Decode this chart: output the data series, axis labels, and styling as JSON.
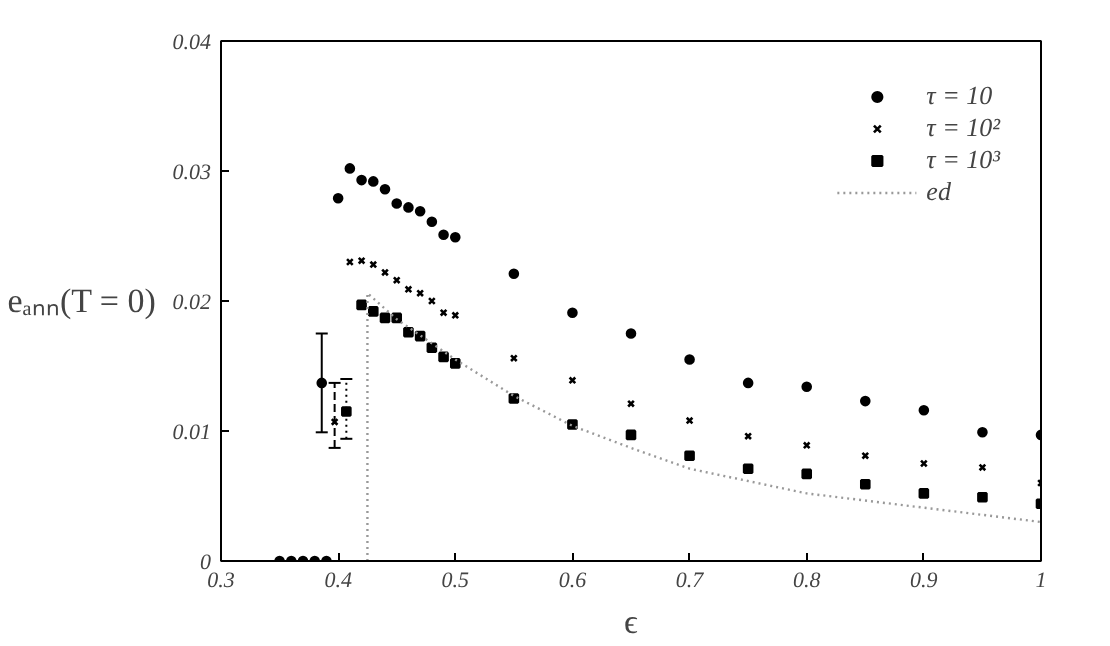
{
  "chart_data": {
    "type": "scatter",
    "xlabel": "ϵ",
    "ylabel": "eₐₙₙ(T = 0)",
    "xlim": [
      0.3,
      1.0
    ],
    "ylim": [
      0,
      0.04
    ],
    "xticks": [
      0.3,
      0.4,
      0.5,
      0.6,
      0.7,
      0.8,
      0.9,
      1
    ],
    "yticks": [
      0,
      0.01,
      0.02,
      0.03,
      0.04
    ],
    "grid": false,
    "legend": "top right",
    "series": [
      {
        "name": "τ = 10",
        "color": "#000000",
        "marker": "circle",
        "line_style": "solid",
        "x": [
          0.35,
          0.36,
          0.37,
          0.38,
          0.39,
          0.386,
          0.4,
          0.41,
          0.42,
          0.43,
          0.44,
          0.45,
          0.46,
          0.47,
          0.48,
          0.49,
          0.5,
          0.55,
          0.6,
          0.65,
          0.7,
          0.75,
          0.8,
          0.85,
          0.9,
          0.95,
          1.0
        ],
        "values": [
          0,
          0,
          0,
          0,
          0,
          0.0137,
          0.0279,
          0.0302,
          0.0293,
          0.0292,
          0.0286,
          0.0275,
          0.0272,
          0.0269,
          0.0261,
          0.0251,
          0.0249,
          0.0221,
          0.0191,
          0.0175,
          0.0155,
          0.0137,
          0.0134,
          0.0123,
          0.0116,
          0.0099,
          0.0097
        ],
        "errors": [
          null,
          null,
          null,
          null,
          null,
          0.0038,
          null,
          null,
          null,
          null,
          null,
          null,
          null,
          null,
          null,
          null,
          null,
          null,
          null,
          null,
          null,
          null,
          null,
          null,
          null,
          null,
          null
        ]
      },
      {
        "name": "τ = 10²",
        "color": "#000000",
        "marker": "cross",
        "line_style": "dashed",
        "x": [
          0.397,
          0.41,
          0.42,
          0.43,
          0.44,
          0.45,
          0.46,
          0.47,
          0.48,
          0.49,
          0.5,
          0.55,
          0.6,
          0.65,
          0.7,
          0.75,
          0.8,
          0.85,
          0.9,
          0.95,
          1.0
        ],
        "values": [
          0.0107,
          0.023,
          0.0231,
          0.0228,
          0.0222,
          0.0216,
          0.0209,
          0.0206,
          0.02,
          0.0191,
          0.0189,
          0.0156,
          0.0139,
          0.0121,
          0.0108,
          0.0096,
          0.0089,
          0.0081,
          0.0075,
          0.0072,
          0.006
        ],
        "errors": [
          [
            0.0087,
            0.0137
          ],
          null,
          null,
          null,
          null,
          null,
          null,
          null,
          null,
          null,
          null,
          null,
          null,
          null,
          null,
          null,
          null,
          null,
          null,
          null,
          null
        ]
      },
      {
        "name": "τ = 10³",
        "color": "#000000",
        "marker": "square",
        "line_style": "dotted",
        "x": [
          0.407,
          0.42,
          0.43,
          0.44,
          0.45,
          0.46,
          0.47,
          0.48,
          0.49,
          0.5,
          0.55,
          0.6,
          0.65,
          0.7,
          0.75,
          0.8,
          0.85,
          0.9,
          0.95,
          1.0
        ],
        "values": [
          0.0115,
          0.0197,
          0.0192,
          0.0187,
          0.0187,
          0.0176,
          0.0173,
          0.0164,
          0.0157,
          0.0152,
          0.0125,
          0.0105,
          0.0097,
          0.0081,
          0.0071,
          0.0067,
          0.0059,
          0.0052,
          0.0049,
          0.0044
        ],
        "errors": [
          [
            0.0094,
            0.014
          ],
          null,
          null,
          null,
          null,
          null,
          null,
          null,
          null,
          null,
          null,
          null,
          null,
          null,
          null,
          null,
          null,
          null,
          null,
          null
        ]
      },
      {
        "name": "ed",
        "type": "line",
        "color": "#999999",
        "line_style": "dotted",
        "x": [
          0.425,
          0.425,
          0.45,
          0.5,
          0.55,
          0.6,
          0.65,
          0.7,
          0.8,
          0.9,
          1.0
        ],
        "values": [
          0,
          0.0206,
          0.0186,
          0.0155,
          0.0127,
          0.0104,
          0.0087,
          0.0071,
          0.0052,
          0.0041,
          0.003
        ]
      }
    ]
  }
}
